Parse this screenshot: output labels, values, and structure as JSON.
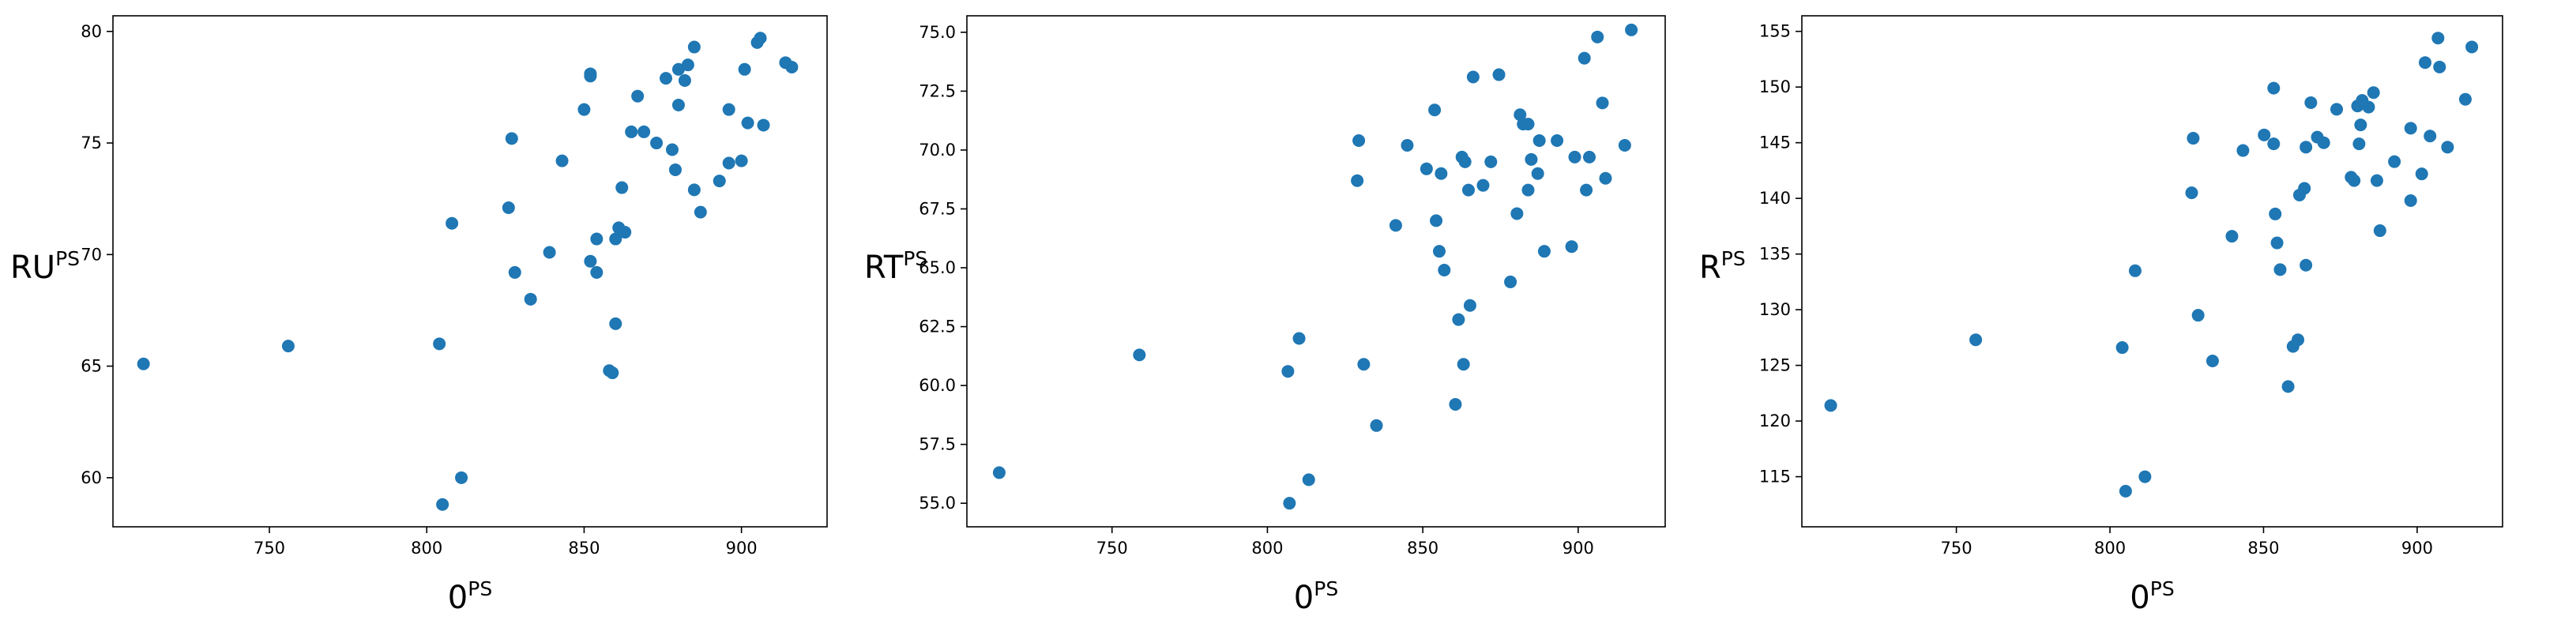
{
  "chart_data": [
    {
      "type": "scatter",
      "color": "#1f77b4",
      "xlabel": {
        "text": "0",
        "sup": "PS"
      },
      "ylabel": {
        "text": "RU",
        "sup": "PS"
      },
      "xlim": [
        700.3,
        927.2
      ],
      "ylim": [
        57.8,
        80.7
      ],
      "xticks": [
        750,
        800,
        850,
        900
      ],
      "yticks": [
        60,
        65,
        70,
        75,
        80
      ],
      "x": [
        710,
        756,
        804,
        805,
        808,
        811,
        826,
        827,
        828,
        833,
        839,
        843,
        850,
        852,
        852,
        852,
        854,
        854,
        858,
        859,
        860,
        860,
        861,
        862,
        863,
        865,
        867,
        869,
        873,
        876,
        878,
        879,
        880,
        880,
        882,
        883,
        885,
        885,
        887,
        893,
        896,
        896,
        900,
        901,
        902,
        905,
        906,
        907,
        914,
        916
      ],
      "y": [
        65.1,
        65.9,
        66.0,
        58.8,
        71.4,
        60.0,
        72.1,
        75.2,
        69.2,
        68.0,
        70.1,
        74.2,
        76.5,
        78.1,
        78.0,
        69.7,
        70.7,
        69.2,
        64.8,
        64.7,
        70.7,
        66.9,
        71.2,
        73.0,
        71.0,
        75.5,
        77.1,
        75.5,
        75.0,
        77.9,
        74.7,
        73.8,
        76.7,
        78.3,
        77.8,
        78.5,
        79.3,
        72.9,
        71.9,
        73.3,
        74.1,
        76.5,
        74.2,
        78.3,
        75.9,
        79.5,
        79.7,
        75.8,
        78.6,
        78.4
      ]
    },
    {
      "type": "scatter",
      "color": "#1f77b4",
      "xlabel": {
        "text": "0",
        "sup": "PS"
      },
      "ylabel": {
        "text": "RT",
        "sup": "PS"
      },
      "xlim": [
        703.3,
        928.0
      ],
      "ylim": [
        54.0,
        75.7
      ],
      "xticks": [
        750,
        800,
        850,
        900
      ],
      "yticks": [
        {
          "value": 55,
          "label": "55.0"
        },
        57.5,
        {
          "value": 60,
          "label": "60.0"
        },
        62.5,
        {
          "value": 65,
          "label": "65.0"
        },
        67.5,
        {
          "value": 70,
          "label": "70.0"
        },
        72.5,
        {
          "value": 75,
          "label": "75.0"
        }
      ],
      "x": [
        713.7,
        758.8,
        806.6,
        807.1,
        810.2,
        813.3,
        828.9,
        829.4,
        831.0,
        835.1,
        841.3,
        845.0,
        851.2,
        853.8,
        854.3,
        855.3,
        856.9,
        855.9,
        860.5,
        861.5,
        862.6,
        863.1,
        863.6,
        864.7,
        865.2,
        866.2,
        869.4,
        871.9,
        874.5,
        878.2,
        880.3,
        881.3,
        882.3,
        883.9,
        883.9,
        884.9,
        887.0,
        887.5,
        889.1,
        893.2,
        897.9,
        898.9,
        902.0,
        902.6,
        903.6,
        906.2,
        907.8,
        908.8,
        915.0,
        917.1
      ],
      "y": [
        56.3,
        61.3,
        60.6,
        55.0,
        62.0,
        56.0,
        68.7,
        70.4,
        60.9,
        58.3,
        66.8,
        70.2,
        69.2,
        71.7,
        67.0,
        65.7,
        64.9,
        69.0,
        59.2,
        62.8,
        69.7,
        60.9,
        69.5,
        68.3,
        63.4,
        73.1,
        68.5,
        69.5,
        73.2,
        64.4,
        67.3,
        71.5,
        71.1,
        71.1,
        68.3,
        69.6,
        69.0,
        70.4,
        65.7,
        70.4,
        65.9,
        69.7,
        73.9,
        68.3,
        69.7,
        74.8,
        72.0,
        68.8,
        70.2,
        75.1
      ]
    },
    {
      "type": "scatter",
      "color": "#1f77b4",
      "xlabel": {
        "text": "0",
        "sup": "PS"
      },
      "ylabel": {
        "text": "R",
        "sup": "PS"
      },
      "xlim": [
        699.7,
        927.8
      ],
      "ylim": [
        110.5,
        156.4
      ],
      "xticks": [
        750,
        800,
        850,
        900
      ],
      "yticks": [
        115,
        120,
        125,
        130,
        135,
        140,
        145,
        150,
        155
      ],
      "x": [
        709.1,
        756.3,
        804.0,
        805.1,
        808.2,
        811.4,
        827.1,
        826.6,
        828.7,
        833.4,
        839.7,
        843.3,
        850.2,
        853.3,
        853.3,
        853.8,
        854.4,
        855.4,
        858.0,
        859.6,
        861.2,
        861.7,
        863.3,
        863.8,
        863.8,
        865.4,
        867.5,
        869.6,
        873.8,
        878.5,
        879.5,
        880.6,
        881.1,
        881.6,
        882.1,
        884.2,
        885.8,
        886.9,
        887.9,
        892.6,
        897.9,
        897.9,
        901.5,
        902.6,
        904.2,
        906.8,
        907.3,
        909.9,
        915.7,
        917.8
      ],
      "y": [
        121.4,
        127.3,
        126.6,
        113.7,
        133.5,
        115.0,
        145.4,
        140.5,
        129.5,
        125.4,
        136.6,
        144.3,
        145.7,
        149.9,
        144.9,
        138.6,
        136.0,
        133.6,
        123.1,
        126.7,
        127.3,
        140.3,
        140.9,
        134.0,
        144.6,
        148.6,
        145.5,
        145.0,
        148.0,
        141.9,
        141.6,
        148.3,
        144.9,
        146.6,
        148.8,
        148.2,
        149.5,
        141.6,
        137.1,
        143.3,
        146.3,
        139.8,
        142.2,
        152.2,
        145.6,
        154.4,
        151.8,
        144.6,
        148.9,
        153.6
      ]
    }
  ]
}
